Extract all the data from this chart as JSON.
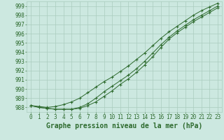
{
  "title": "Graphe pression niveau de la mer (hPa)",
  "x": [
    0,
    1,
    2,
    3,
    4,
    5,
    6,
    7,
    8,
    9,
    10,
    11,
    12,
    13,
    14,
    15,
    16,
    17,
    18,
    19,
    20,
    21,
    22,
    23
  ],
  "line1": [
    988.2,
    988.1,
    988.0,
    988.1,
    988.3,
    988.6,
    989.0,
    989.6,
    990.2,
    990.8,
    991.3,
    991.9,
    992.5,
    993.2,
    993.9,
    994.7,
    995.5,
    996.2,
    996.8,
    997.4,
    998.0,
    998.5,
    998.9,
    999.3
  ],
  "line2": [
    988.2,
    988.0,
    987.9,
    987.8,
    987.8,
    987.8,
    988.0,
    988.4,
    989.0,
    989.7,
    990.3,
    990.9,
    991.5,
    992.2,
    993.0,
    993.9,
    994.8,
    995.6,
    996.3,
    996.9,
    997.5,
    998.0,
    998.5,
    999.0
  ],
  "line3": [
    988.2,
    988.0,
    987.9,
    987.8,
    987.8,
    987.8,
    987.9,
    988.2,
    988.6,
    989.2,
    989.8,
    990.5,
    991.1,
    991.8,
    992.6,
    993.5,
    994.5,
    995.4,
    996.1,
    996.7,
    997.3,
    997.8,
    998.3,
    998.8
  ],
  "line_color": "#2d6a2d",
  "bg_color": "#cce8e0",
  "grid_color": "#aaccbe",
  "text_color": "#2d6a2d",
  "ylim": [
    987.5,
    999.5
  ],
  "yticks": [
    988,
    989,
    990,
    991,
    992,
    993,
    994,
    995,
    996,
    997,
    998,
    999
  ],
  "xlim": [
    -0.5,
    23.5
  ],
  "title_fontsize": 7,
  "tick_fontsize": 5.5
}
